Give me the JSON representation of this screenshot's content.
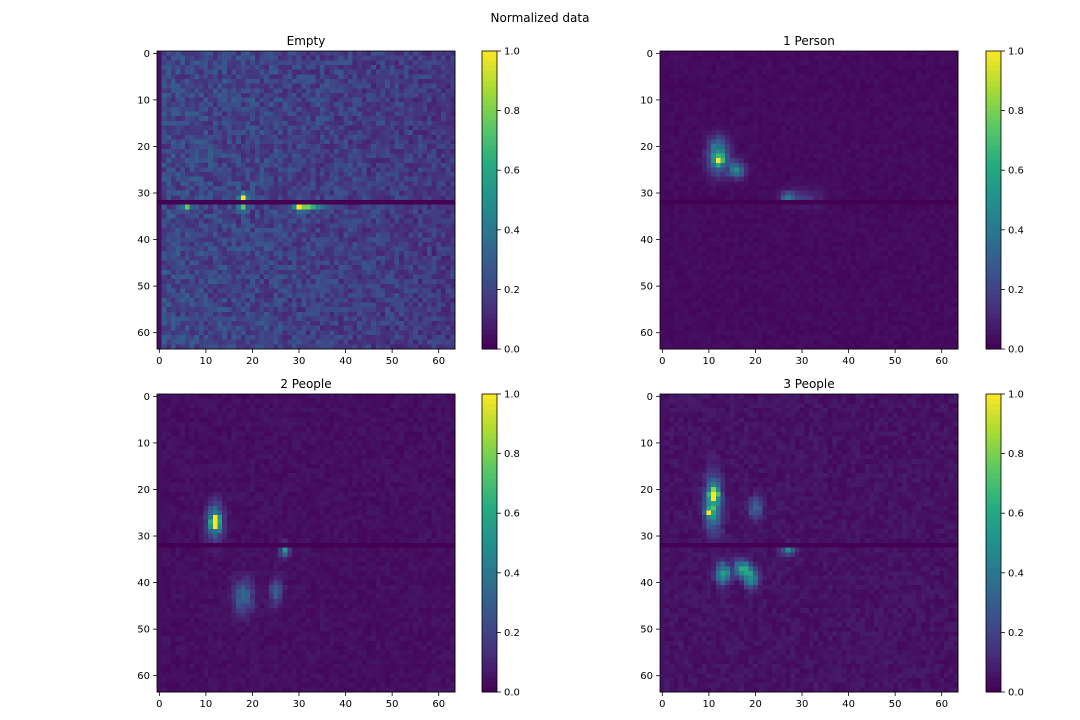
{
  "figure": {
    "suptitle": "Normalized data"
  },
  "chart_data": [
    {
      "type": "heatmap",
      "title": "Empty",
      "colormap": "viridis",
      "grid_size": [
        64,
        64
      ],
      "xlim": [
        0,
        63
      ],
      "ylim": [
        63,
        0
      ],
      "xticks": [
        "0",
        "10",
        "20",
        "30",
        "40",
        "50",
        "60"
      ],
      "yticks": [
        "0",
        "10",
        "20",
        "30",
        "40",
        "50",
        "60"
      ],
      "colorbar": {
        "min": 0.0,
        "max": 1.0,
        "ticks": [
          "0.0",
          "0.2",
          "0.4",
          "0.6",
          "0.8",
          "1.0"
        ]
      },
      "background_level": 0.22,
      "left_column_level": 0.05,
      "dark_row": 32,
      "hotspots": [
        {
          "x": 18,
          "y": 31,
          "value": 1.0,
          "sx": 0.5,
          "sy": 0.5
        },
        {
          "x": 30,
          "y": 33,
          "value": 1.0,
          "sx": 0.5,
          "sy": 0.5
        },
        {
          "x": 6,
          "y": 33,
          "value": 0.6,
          "sx": 0.6,
          "sy": 0.5
        },
        {
          "x": 18,
          "y": 33,
          "value": 0.5,
          "sx": 0.6,
          "sy": 0.8
        },
        {
          "x": 32,
          "y": 33,
          "value": 0.55,
          "sx": 2.0,
          "sy": 0.5
        }
      ]
    },
    {
      "type": "heatmap",
      "title": "1 Person",
      "colormap": "viridis",
      "grid_size": [
        64,
        64
      ],
      "xlim": [
        0,
        63
      ],
      "ylim": [
        63,
        0
      ],
      "xticks": [
        "0",
        "10",
        "20",
        "30",
        "40",
        "50",
        "60"
      ],
      "yticks": [
        "0",
        "10",
        "20",
        "30",
        "40",
        "50",
        "60"
      ],
      "colorbar": {
        "min": 0.0,
        "max": 1.0,
        "ticks": [
          "0.0",
          "0.2",
          "0.4",
          "0.6",
          "0.8",
          "1.0"
        ]
      },
      "background_level": 0.03,
      "left_column_level": 0.03,
      "dark_row": 32,
      "hotspots": [
        {
          "x": 12,
          "y": 23,
          "value": 1.0,
          "sx": 0.5,
          "sy": 0.5
        },
        {
          "x": 12,
          "y": 22,
          "value": 0.55,
          "sx": 1.5,
          "sy": 2.5
        },
        {
          "x": 16,
          "y": 25,
          "value": 0.4,
          "sx": 1.2,
          "sy": 1.2
        },
        {
          "x": 27,
          "y": 31,
          "value": 0.3,
          "sx": 1.0,
          "sy": 0.8
        },
        {
          "x": 30,
          "y": 31,
          "value": 0.15,
          "sx": 3.0,
          "sy": 1.2
        }
      ]
    },
    {
      "type": "heatmap",
      "title": "2 People",
      "colormap": "viridis",
      "grid_size": [
        64,
        64
      ],
      "xlim": [
        0,
        63
      ],
      "ylim": [
        63,
        0
      ],
      "xticks": [
        "0",
        "10",
        "20",
        "30",
        "40",
        "50",
        "60"
      ],
      "yticks": [
        "0",
        "10",
        "20",
        "30",
        "40",
        "50",
        "60"
      ],
      "colorbar": {
        "min": 0.0,
        "max": 1.0,
        "ticks": [
          "0.0",
          "0.2",
          "0.4",
          "0.6",
          "0.8",
          "1.0"
        ]
      },
      "background_level": 0.04,
      "left_column_level": 0.04,
      "dark_row": 32,
      "hotspots": [
        {
          "x": 12,
          "y": 27,
          "value": 1.0,
          "sx": 0.5,
          "sy": 0.8
        },
        {
          "x": 12,
          "y": 27,
          "value": 0.55,
          "sx": 1.2,
          "sy": 2.5
        },
        {
          "x": 27,
          "y": 33,
          "value": 0.45,
          "sx": 0.7,
          "sy": 1.0
        },
        {
          "x": 18,
          "y": 43,
          "value": 0.3,
          "sx": 1.5,
          "sy": 2.5
        },
        {
          "x": 25,
          "y": 42,
          "value": 0.25,
          "sx": 1.0,
          "sy": 2.0
        }
      ]
    },
    {
      "type": "heatmap",
      "title": "3 People",
      "colormap": "viridis",
      "grid_size": [
        64,
        64
      ],
      "xlim": [
        0,
        63
      ],
      "ylim": [
        63,
        0
      ],
      "xticks": [
        "0",
        "10",
        "20",
        "30",
        "40",
        "50",
        "60"
      ],
      "yticks": [
        "0",
        "10",
        "20",
        "30",
        "40",
        "50",
        "60"
      ],
      "colorbar": {
        "min": 0.0,
        "max": 1.0,
        "ticks": [
          "0.0",
          "0.2",
          "0.4",
          "0.6",
          "0.8",
          "1.0"
        ]
      },
      "background_level": 0.05,
      "left_column_level": 0.05,
      "dark_row": 32,
      "hotspots": [
        {
          "x": 11,
          "y": 21,
          "value": 1.0,
          "sx": 0.6,
          "sy": 0.8
        },
        {
          "x": 10,
          "y": 25,
          "value": 0.9,
          "sx": 0.5,
          "sy": 0.5
        },
        {
          "x": 11,
          "y": 23,
          "value": 0.55,
          "sx": 1.2,
          "sy": 4.0
        },
        {
          "x": 13,
          "y": 38,
          "value": 0.6,
          "sx": 1.0,
          "sy": 1.5
        },
        {
          "x": 17,
          "y": 37,
          "value": 0.6,
          "sx": 1.0,
          "sy": 1.2
        },
        {
          "x": 19,
          "y": 39,
          "value": 0.55,
          "sx": 1.0,
          "sy": 1.5
        },
        {
          "x": 27,
          "y": 33,
          "value": 0.45,
          "sx": 1.0,
          "sy": 0.8
        },
        {
          "x": 20,
          "y": 24,
          "value": 0.3,
          "sx": 1.0,
          "sy": 1.5
        }
      ]
    }
  ]
}
